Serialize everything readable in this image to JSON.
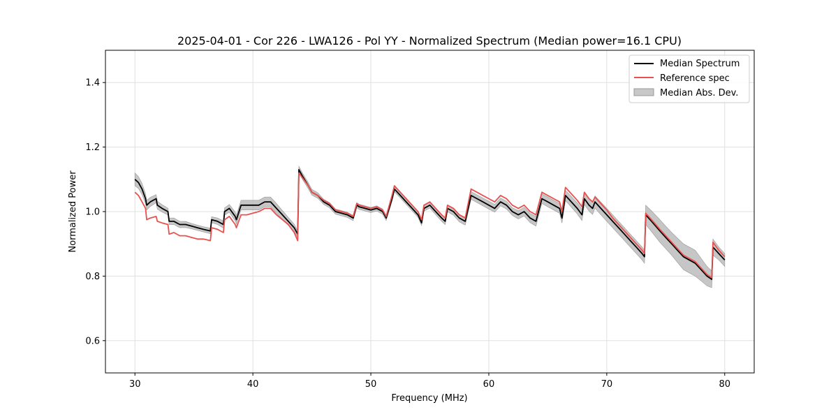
{
  "chart_data": {
    "type": "line",
    "title": "2025-04-01 - Cor 226 - LWA126 - Pol YY - Normalized Spectrum (Median power=16.1 CPU)",
    "xlabel": "Frequency (MHz)",
    "ylabel": "Normalized Power",
    "xlim": [
      27.5,
      82.5
    ],
    "ylim": [
      0.5,
      1.5
    ],
    "xticks": [
      30,
      40,
      50,
      60,
      70,
      80
    ],
    "yticks": [
      0.6,
      0.8,
      1.0,
      1.2,
      1.4
    ],
    "xtick_labels": [
      "30",
      "40",
      "50",
      "60",
      "70",
      "80"
    ],
    "ytick_labels": [
      "0.6",
      "0.8",
      "1.0",
      "1.2",
      "1.4"
    ],
    "grid": true,
    "legend_position": "top-right",
    "legend": [
      "Median Spectrum",
      "Reference spec",
      "Median Abs. Dev."
    ],
    "colors": {
      "median": "#000000",
      "reference": "#e8514f",
      "mad_fill": "#b3b3b3",
      "mad_edge": "#999999",
      "grid": "#e0e0e0"
    },
    "series": [
      {
        "name": "Median Spectrum",
        "x": [
          30.0,
          30.3,
          30.6,
          30.9,
          31.0,
          31.3,
          31.8,
          31.9,
          32.3,
          32.8,
          32.9,
          33.3,
          33.8,
          34.3,
          34.8,
          35.3,
          35.8,
          36.4,
          36.5,
          37.0,
          37.5,
          37.6,
          38.0,
          38.5,
          38.6,
          39.0,
          39.5,
          40.0,
          40.5,
          41.0,
          41.5,
          42.0,
          42.5,
          43.0,
          43.5,
          43.8,
          43.9,
          44.2,
          44.7,
          45.0,
          45.5,
          46.0,
          46.5,
          47.0,
          47.5,
          48.0,
          48.5,
          48.8,
          49.0,
          49.5,
          50.0,
          50.5,
          51.0,
          51.3,
          51.8,
          52.0,
          52.5,
          53.0,
          53.5,
          54.0,
          54.3,
          54.5,
          55.0,
          55.5,
          56.0,
          56.3,
          56.5,
          57.0,
          57.5,
          58.0,
          58.5,
          59.0,
          59.5,
          60.0,
          60.5,
          61.0,
          61.5,
          62.0,
          62.5,
          63.0,
          63.5,
          64.0,
          64.5,
          65.0,
          65.5,
          66.0,
          66.2,
          66.5,
          67.0,
          67.5,
          67.9,
          68.1,
          68.5,
          68.8,
          69.0,
          69.5,
          70.0,
          70.5,
          71.0,
          71.5,
          72.0,
          72.5,
          73.0,
          73.2,
          73.3,
          73.8,
          74.5,
          75.0,
          75.5,
          76.0,
          76.5,
          77.0,
          77.5,
          78.0,
          78.5,
          78.9,
          79.0,
          79.5,
          80.0
        ],
        "values": [
          1.1,
          1.09,
          1.07,
          1.04,
          1.02,
          1.03,
          1.04,
          1.02,
          1.01,
          1.0,
          0.97,
          0.97,
          0.96,
          0.96,
          0.955,
          0.95,
          0.945,
          0.94,
          0.975,
          0.97,
          0.96,
          1.0,
          1.01,
          0.985,
          0.975,
          1.02,
          1.02,
          1.02,
          1.02,
          1.03,
          1.03,
          1.01,
          0.99,
          0.97,
          0.95,
          0.93,
          1.13,
          1.11,
          1.08,
          1.06,
          1.05,
          1.03,
          1.02,
          1.0,
          0.995,
          0.99,
          0.98,
          1.02,
          1.015,
          1.01,
          1.005,
          1.01,
          1.0,
          0.98,
          1.04,
          1.07,
          1.05,
          1.03,
          1.01,
          0.99,
          0.965,
          1.01,
          1.02,
          1.0,
          0.98,
          0.97,
          1.01,
          1.0,
          0.98,
          0.97,
          1.05,
          1.04,
          1.03,
          1.02,
          1.01,
          1.03,
          1.02,
          1.0,
          0.99,
          1.0,
          0.98,
          0.97,
          1.04,
          1.03,
          1.02,
          1.01,
          0.98,
          1.05,
          1.03,
          1.01,
          0.99,
          1.04,
          1.02,
          1.01,
          1.03,
          1.01,
          0.99,
          0.97,
          0.95,
          0.93,
          0.91,
          0.89,
          0.87,
          0.86,
          0.99,
          0.97,
          0.94,
          0.92,
          0.9,
          0.88,
          0.86,
          0.85,
          0.84,
          0.82,
          0.8,
          0.79,
          0.89,
          0.87,
          0.85
        ]
      },
      {
        "name": "Reference spec",
        "x": [
          30.0,
          30.3,
          30.6,
          30.9,
          31.0,
          31.3,
          31.8,
          31.9,
          32.3,
          32.8,
          32.9,
          33.3,
          33.8,
          34.3,
          34.8,
          35.3,
          35.8,
          36.4,
          36.5,
          37.0,
          37.5,
          37.6,
          38.0,
          38.5,
          38.6,
          39.0,
          39.5,
          40.0,
          40.5,
          41.0,
          41.5,
          42.0,
          42.5,
          43.0,
          43.5,
          43.8,
          43.9,
          44.2,
          44.7,
          45.0,
          45.5,
          46.0,
          46.5,
          47.0,
          47.5,
          48.0,
          48.5,
          48.8,
          49.0,
          49.5,
          50.0,
          50.5,
          51.0,
          51.3,
          51.8,
          52.0,
          52.5,
          53.0,
          53.5,
          54.0,
          54.3,
          54.5,
          55.0,
          55.5,
          56.0,
          56.3,
          56.5,
          57.0,
          57.5,
          58.0,
          58.5,
          59.0,
          59.5,
          60.0,
          60.5,
          61.0,
          61.5,
          62.0,
          62.5,
          63.0,
          63.5,
          64.0,
          64.5,
          65.0,
          65.5,
          66.0,
          66.2,
          66.5,
          67.0,
          67.5,
          67.9,
          68.1,
          68.5,
          68.8,
          69.0,
          69.5,
          70.0,
          70.5,
          71.0,
          71.5,
          72.0,
          72.5,
          73.0,
          73.2,
          73.3,
          73.8,
          74.5,
          75.0,
          75.5,
          76.0,
          76.5,
          77.0,
          77.5,
          78.0,
          78.5,
          78.9,
          79.0,
          79.5,
          80.0
        ],
        "values": [
          1.06,
          1.05,
          1.03,
          1.01,
          0.975,
          0.98,
          0.985,
          0.97,
          0.965,
          0.96,
          0.93,
          0.935,
          0.925,
          0.925,
          0.92,
          0.915,
          0.915,
          0.91,
          0.95,
          0.945,
          0.935,
          0.975,
          0.985,
          0.96,
          0.95,
          0.99,
          0.99,
          0.995,
          1.0,
          1.01,
          1.01,
          0.99,
          0.975,
          0.96,
          0.935,
          0.91,
          1.12,
          1.105,
          1.08,
          1.06,
          1.05,
          1.035,
          1.025,
          1.005,
          1.0,
          0.995,
          0.985,
          1.025,
          1.02,
          1.015,
          1.01,
          1.015,
          1.005,
          0.985,
          1.05,
          1.08,
          1.06,
          1.04,
          1.02,
          1.0,
          0.975,
          1.02,
          1.03,
          1.01,
          0.99,
          0.98,
          1.02,
          1.01,
          0.99,
          0.98,
          1.07,
          1.06,
          1.05,
          1.04,
          1.03,
          1.05,
          1.04,
          1.02,
          1.01,
          1.02,
          1.0,
          0.99,
          1.06,
          1.05,
          1.04,
          1.03,
          1.0,
          1.075,
          1.055,
          1.035,
          1.015,
          1.06,
          1.04,
          1.03,
          1.045,
          1.025,
          1.005,
          0.98,
          0.96,
          0.94,
          0.92,
          0.9,
          0.88,
          0.87,
          0.995,
          0.975,
          0.945,
          0.925,
          0.905,
          0.885,
          0.865,
          0.855,
          0.845,
          0.825,
          0.805,
          0.795,
          0.905,
          0.88,
          0.86
        ]
      }
    ],
    "mad_band": {
      "name": "Median Abs. Dev.",
      "x": [
        30.0,
        31.0,
        32.0,
        33.0,
        34.0,
        35.0,
        36.0,
        37.0,
        38.0,
        39.0,
        40.0,
        41.0,
        42.0,
        43.0,
        44.0,
        46.0,
        48.0,
        50.0,
        52.0,
        54.0,
        56.0,
        58.0,
        60.0,
        62.0,
        64.0,
        66.0,
        68.0,
        70.0,
        72.0,
        73.2,
        73.3,
        74.5,
        75.5,
        76.5,
        77.5,
        78.5,
        79.5,
        80.0
      ],
      "halfwidth": [
        0.02,
        0.015,
        0.012,
        0.01,
        0.01,
        0.008,
        0.008,
        0.01,
        0.012,
        0.015,
        0.015,
        0.015,
        0.015,
        0.012,
        0.01,
        0.008,
        0.008,
        0.008,
        0.008,
        0.008,
        0.01,
        0.012,
        0.012,
        0.012,
        0.015,
        0.015,
        0.018,
        0.02,
        0.02,
        0.02,
        0.03,
        0.035,
        0.035,
        0.04,
        0.04,
        0.03,
        0.02,
        0.02
      ]
    }
  }
}
